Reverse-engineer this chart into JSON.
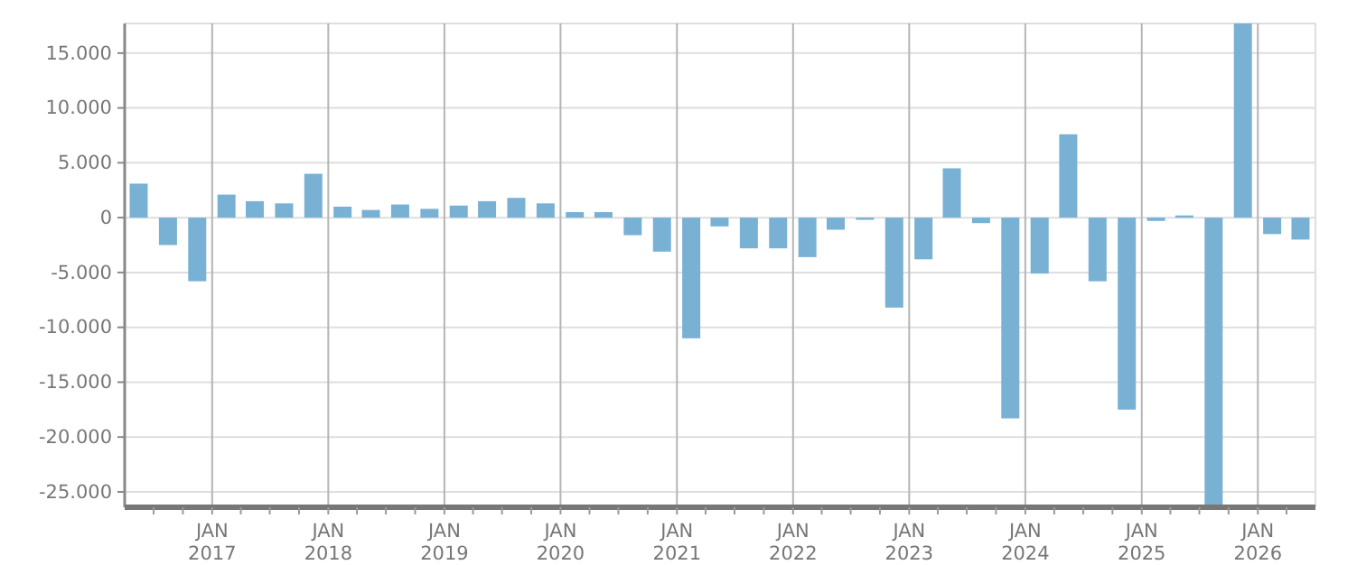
{
  "chart_data": {
    "type": "bar",
    "color": "#78b1d4",
    "grid": true,
    "x": [
      "2016-05-15",
      "2016-08-15",
      "2016-11-15",
      "2017-02-15",
      "2017-05-15",
      "2017-08-15",
      "2017-11-15",
      "2018-02-15",
      "2018-05-15",
      "2018-08-15",
      "2018-11-15",
      "2019-02-15",
      "2019-05-15",
      "2019-08-15",
      "2019-11-15",
      "2020-02-15",
      "2020-05-15",
      "2020-08-15",
      "2020-11-15",
      "2021-02-15",
      "2021-05-15",
      "2021-08-15",
      "2021-11-15",
      "2022-02-15",
      "2022-05-15",
      "2022-08-15",
      "2022-11-15",
      "2023-02-15",
      "2023-05-15",
      "2023-08-15",
      "2023-11-15",
      "2024-02-15",
      "2024-05-15",
      "2024-08-15",
      "2024-11-15",
      "2025-02-15",
      "2025-05-15",
      "2025-08-15",
      "2025-11-15",
      "2026-02-15",
      "2026-05-15"
    ],
    "values": [
      3100,
      -2500,
      -5800,
      2100,
      1500,
      1300,
      4000,
      1000,
      700,
      1200,
      800,
      1100,
      1500,
      1800,
      1300,
      500,
      500,
      -1600,
      -3100,
      -11000,
      -800,
      -2800,
      -2800,
      -3600,
      -1100,
      -200,
      -8200,
      -3800,
      4500,
      -500,
      -18300,
      -5100,
      7600,
      -5800,
      -17500,
      -300,
      200,
      -26400,
      17700,
      -1500,
      -2000
    ],
    "xlim": [
      "2016-04-01",
      "2026-07-01"
    ],
    "xticks": [
      {
        "value": "2016-07-01",
        "label": null
      },
      {
        "value": "2016-10-01",
        "label": null
      },
      {
        "value": "2017-01-01",
        "label": "JAN\n2017"
      },
      {
        "value": "2017-04-01",
        "label": null
      },
      {
        "value": "2017-07-01",
        "label": null
      },
      {
        "value": "2017-10-01",
        "label": null
      },
      {
        "value": "2018-01-01",
        "label": "JAN\n2018"
      },
      {
        "value": "2018-04-01",
        "label": null
      },
      {
        "value": "2018-07-01",
        "label": null
      },
      {
        "value": "2018-10-01",
        "label": null
      },
      {
        "value": "2019-01-01",
        "label": "JAN\n2019"
      },
      {
        "value": "2019-04-01",
        "label": null
      },
      {
        "value": "2019-07-01",
        "label": null
      },
      {
        "value": "2019-10-01",
        "label": null
      },
      {
        "value": "2020-01-01",
        "label": "JAN\n2020"
      },
      {
        "value": "2020-04-01",
        "label": null
      },
      {
        "value": "2020-07-01",
        "label": null
      },
      {
        "value": "2020-10-01",
        "label": null
      },
      {
        "value": "2021-01-01",
        "label": "JAN\n2021"
      },
      {
        "value": "2021-04-01",
        "label": null
      },
      {
        "value": "2021-07-01",
        "label": null
      },
      {
        "value": "2021-10-01",
        "label": null
      },
      {
        "value": "2022-01-01",
        "label": "JAN\n2022"
      },
      {
        "value": "2022-04-01",
        "label": null
      },
      {
        "value": "2022-07-01",
        "label": null
      },
      {
        "value": "2022-10-01",
        "label": null
      },
      {
        "value": "2023-01-01",
        "label": "JAN\n2023"
      },
      {
        "value": "2023-04-01",
        "label": null
      },
      {
        "value": "2023-07-01",
        "label": null
      },
      {
        "value": "2023-10-01",
        "label": null
      },
      {
        "value": "2024-01-01",
        "label": "JAN\n2024"
      },
      {
        "value": "2024-04-01",
        "label": null
      },
      {
        "value": "2024-07-01",
        "label": null
      },
      {
        "value": "2024-10-01",
        "label": null
      },
      {
        "value": "2025-01-01",
        "label": "JAN\n2025"
      },
      {
        "value": "2025-04-01",
        "label": null
      },
      {
        "value": "2025-07-01",
        "label": null
      },
      {
        "value": "2025-10-01",
        "label": null
      },
      {
        "value": "2026-01-01",
        "label": "JAN\n2026"
      },
      {
        "value": "2026-04-01",
        "label": null
      }
    ],
    "ylim": [
      -26400,
      17700
    ],
    "yticks": [
      {
        "value": -25000,
        "label": "-25.000"
      },
      {
        "value": -20000,
        "label": "-20.000"
      },
      {
        "value": -15000,
        "label": "-15.000"
      },
      {
        "value": -10000,
        "label": "-10.000"
      },
      {
        "value": -5000,
        "label": "-5.000"
      },
      0,
      {
        "value": 5000,
        "label": "5.000"
      },
      {
        "value": 10000,
        "label": "10.000"
      },
      {
        "value": 15000,
        "label": "15.000"
      }
    ]
  }
}
